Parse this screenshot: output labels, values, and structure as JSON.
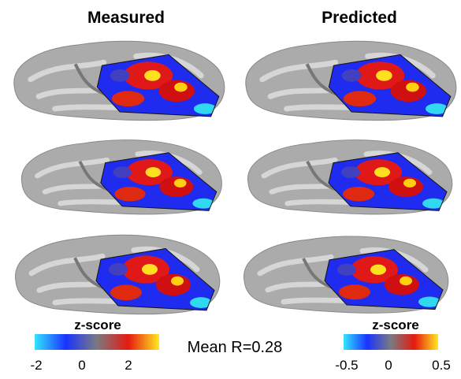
{
  "columns": [
    {
      "title": "Measured"
    },
    {
      "title": "Predicted"
    }
  ],
  "colorbars": [
    {
      "label": "z-score",
      "ticks": [
        "-2",
        "0",
        "2"
      ]
    },
    {
      "label": "z-score",
      "ticks": [
        "-0.5",
        "0",
        "0.5"
      ]
    }
  ],
  "annotation": "Mean R=0.28"
}
